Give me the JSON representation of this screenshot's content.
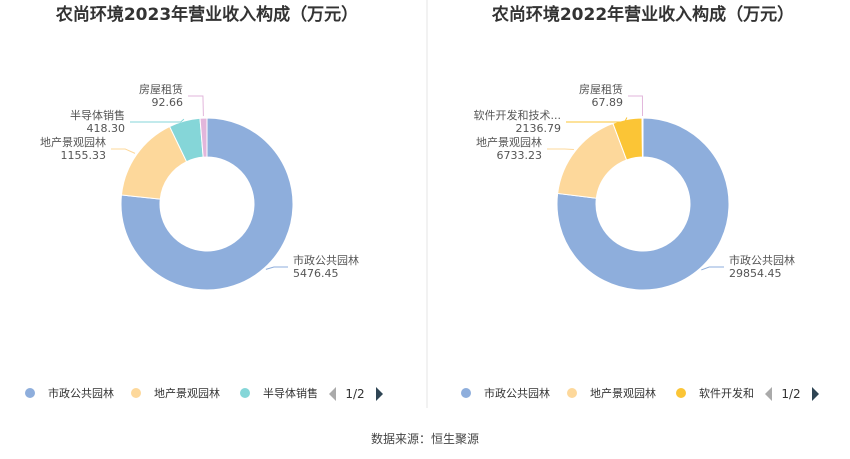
{
  "chart_data": [
    {
      "type": "pie",
      "donut": true,
      "title": "农尚环境2023年营业收入构成（万元）",
      "slices": [
        {
          "label": "市政公共园林",
          "value": 5476.45,
          "value_text": "5476.45",
          "color": "#8eaedc"
        },
        {
          "label": "地产景观园林",
          "value": 1155.33,
          "value_text": "1155.33",
          "color": "#fdd89b"
        },
        {
          "label": "半导体销售",
          "value": 418.3,
          "value_text": "418.30",
          "color": "#85d6d8"
        },
        {
          "label": "房屋租赁",
          "value": 92.66,
          "value_text": "92.66",
          "color": "#e2b6db"
        }
      ],
      "legend": {
        "position": "bottom",
        "items": [
          "市政公共园林",
          "地产景观园林",
          "半导体销售"
        ],
        "page": "1/2"
      }
    },
    {
      "type": "pie",
      "donut": true,
      "title": "农尚环境2022年营业收入构成（万元）",
      "slices": [
        {
          "label": "市政公共园林",
          "value": 29854.45,
          "value_text": "29854.45",
          "color": "#8eaedc"
        },
        {
          "label": "地产景观园林",
          "value": 6733.23,
          "value_text": "6733.23",
          "color": "#fdd89b"
        },
        {
          "label": "软件开发和技术...",
          "value": 2136.79,
          "value_text": "2136.79",
          "color": "#fbc536"
        },
        {
          "label": "房屋租赁",
          "value": 67.89,
          "value_text": "67.89",
          "color": "#e2b6db"
        }
      ],
      "legend": {
        "position": "bottom",
        "items": [
          "市政公共园林",
          "地产景观园林",
          "软件开发和"
        ],
        "page": "1/2"
      }
    }
  ],
  "source_text": "数据来源：恒生聚源"
}
